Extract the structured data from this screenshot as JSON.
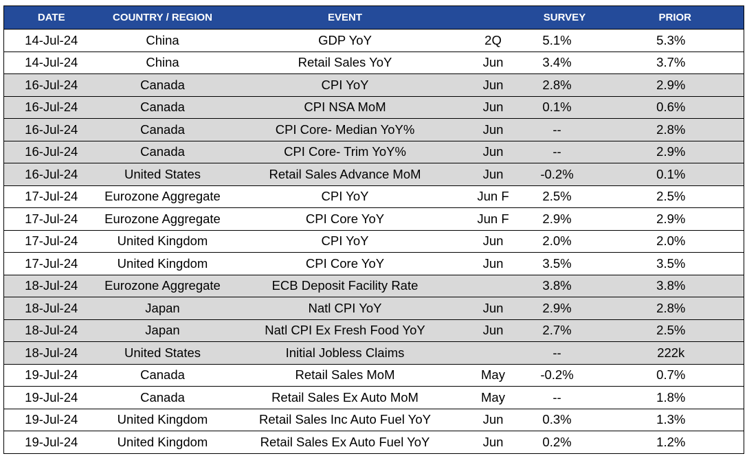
{
  "table": {
    "headers": {
      "date": "DATE",
      "country": "COUNTRY / REGION",
      "event": "EVENT",
      "period": "",
      "survey": "SURVEY",
      "prior": "PRIOR"
    },
    "rows": [
      {
        "date": "14-Jul-24",
        "country": "China",
        "event": "GDP YoY",
        "period": "2Q",
        "survey": "5.1%",
        "prior": "5.3%",
        "shaded": false
      },
      {
        "date": "14-Jul-24",
        "country": "China",
        "event": "Retail Sales YoY",
        "period": "Jun",
        "survey": "3.4%",
        "prior": "3.7%",
        "shaded": false
      },
      {
        "date": "16-Jul-24",
        "country": "Canada",
        "event": "CPI YoY",
        "period": "Jun",
        "survey": "2.8%",
        "prior": "2.9%",
        "shaded": true
      },
      {
        "date": "16-Jul-24",
        "country": "Canada",
        "event": "CPI NSA MoM",
        "period": "Jun",
        "survey": "0.1%",
        "prior": "0.6%",
        "shaded": true
      },
      {
        "date": "16-Jul-24",
        "country": "Canada",
        "event": "CPI Core- Median YoY%",
        "period": "Jun",
        "survey": "--",
        "prior": "2.8%",
        "shaded": true
      },
      {
        "date": "16-Jul-24",
        "country": "Canada",
        "event": "CPI Core- Trim YoY%",
        "period": "Jun",
        "survey": "--",
        "prior": "2.9%",
        "shaded": true
      },
      {
        "date": "16-Jul-24",
        "country": "United States",
        "event": "Retail Sales Advance MoM",
        "period": "Jun",
        "survey": "-0.2%",
        "prior": "0.1%",
        "shaded": true
      },
      {
        "date": "17-Jul-24",
        "country": "Eurozone Aggregate",
        "event": "CPI YoY",
        "period": "Jun F",
        "survey": "2.5%",
        "prior": "2.5%",
        "shaded": false
      },
      {
        "date": "17-Jul-24",
        "country": "Eurozone Aggregate",
        "event": "CPI Core YoY",
        "period": "Jun F",
        "survey": "2.9%",
        "prior": "2.9%",
        "shaded": false
      },
      {
        "date": "17-Jul-24",
        "country": "United Kingdom",
        "event": "CPI YoY",
        "period": "Jun",
        "survey": "2.0%",
        "prior": "2.0%",
        "shaded": false
      },
      {
        "date": "17-Jul-24",
        "country": "United Kingdom",
        "event": "CPI Core YoY",
        "period": "Jun",
        "survey": "3.5%",
        "prior": "3.5%",
        "shaded": false
      },
      {
        "date": "18-Jul-24",
        "country": "Eurozone Aggregate",
        "event": "ECB Deposit Facility Rate",
        "period": "",
        "survey": "3.8%",
        "prior": "3.8%",
        "shaded": true
      },
      {
        "date": "18-Jul-24",
        "country": "Japan",
        "event": "Natl CPI YoY",
        "period": "Jun",
        "survey": "2.9%",
        "prior": "2.8%",
        "shaded": true
      },
      {
        "date": "18-Jul-24",
        "country": "Japan",
        "event": "Natl CPI Ex Fresh Food YoY",
        "period": "Jun",
        "survey": "2.7%",
        "prior": "2.5%",
        "shaded": true
      },
      {
        "date": "18-Jul-24",
        "country": "United States",
        "event": "Initial Jobless Claims",
        "period": "",
        "survey": "--",
        "prior": "222k",
        "shaded": true
      },
      {
        "date": "19-Jul-24",
        "country": "Canada",
        "event": "Retail Sales MoM",
        "period": "May",
        "survey": "-0.2%",
        "prior": "0.7%",
        "shaded": false
      },
      {
        "date": "19-Jul-24",
        "country": "Canada",
        "event": "Retail Sales Ex Auto MoM",
        "period": "May",
        "survey": "--",
        "prior": "1.8%",
        "shaded": false
      },
      {
        "date": "19-Jul-24",
        "country": "United Kingdom",
        "event": "Retail Sales Inc Auto Fuel YoY",
        "period": "Jun",
        "survey": "0.3%",
        "prior": "1.3%",
        "shaded": false
      },
      {
        "date": "19-Jul-24",
        "country": "United Kingdom",
        "event": "Retail Sales Ex Auto Fuel YoY",
        "period": "Jun",
        "survey": "0.2%",
        "prior": "1.2%",
        "shaded": false
      }
    ]
  },
  "colors": {
    "header_bg": "#244b9a",
    "header_text": "#ffffff",
    "shaded_row": "#d9d9d9",
    "plain_row": "#ffffff"
  }
}
